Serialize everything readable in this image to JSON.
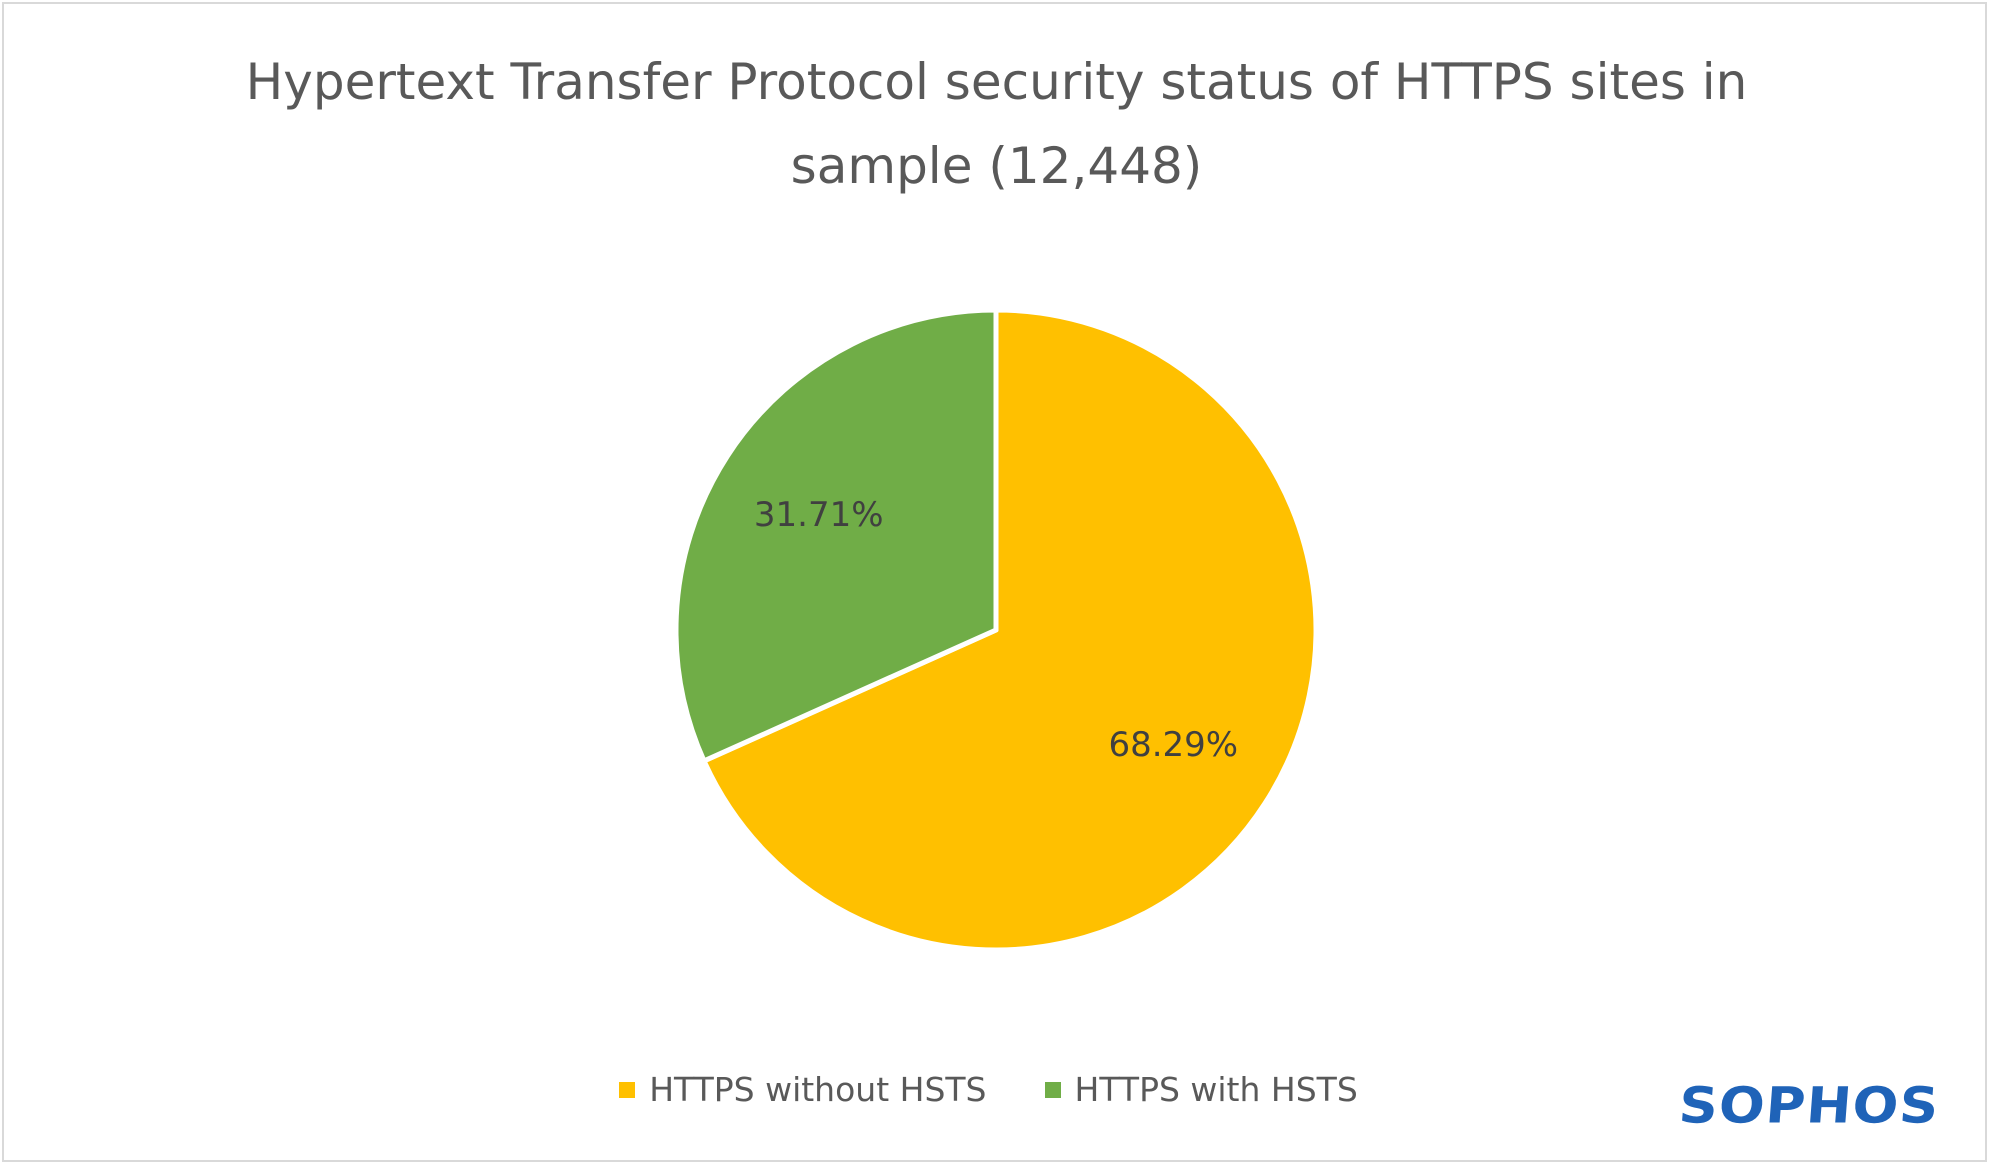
{
  "chart_data": {
    "type": "pie",
    "title_lines": [
      "Hypertext Transfer Protocol security status of HTTPS sites in",
      "sample (12,448)"
    ],
    "slices": [
      {
        "name": "HTTPS without HSTS",
        "value": 68.29,
        "label": "68.29%",
        "color": "#ffc000"
      },
      {
        "name": "HTTPS with HSTS",
        "value": 31.71,
        "label": "31.71%",
        "color": "#70ad47"
      }
    ],
    "legend_position": "bottom"
  },
  "logo": {
    "text": "SOPHOS",
    "color": "#1f63b8"
  }
}
